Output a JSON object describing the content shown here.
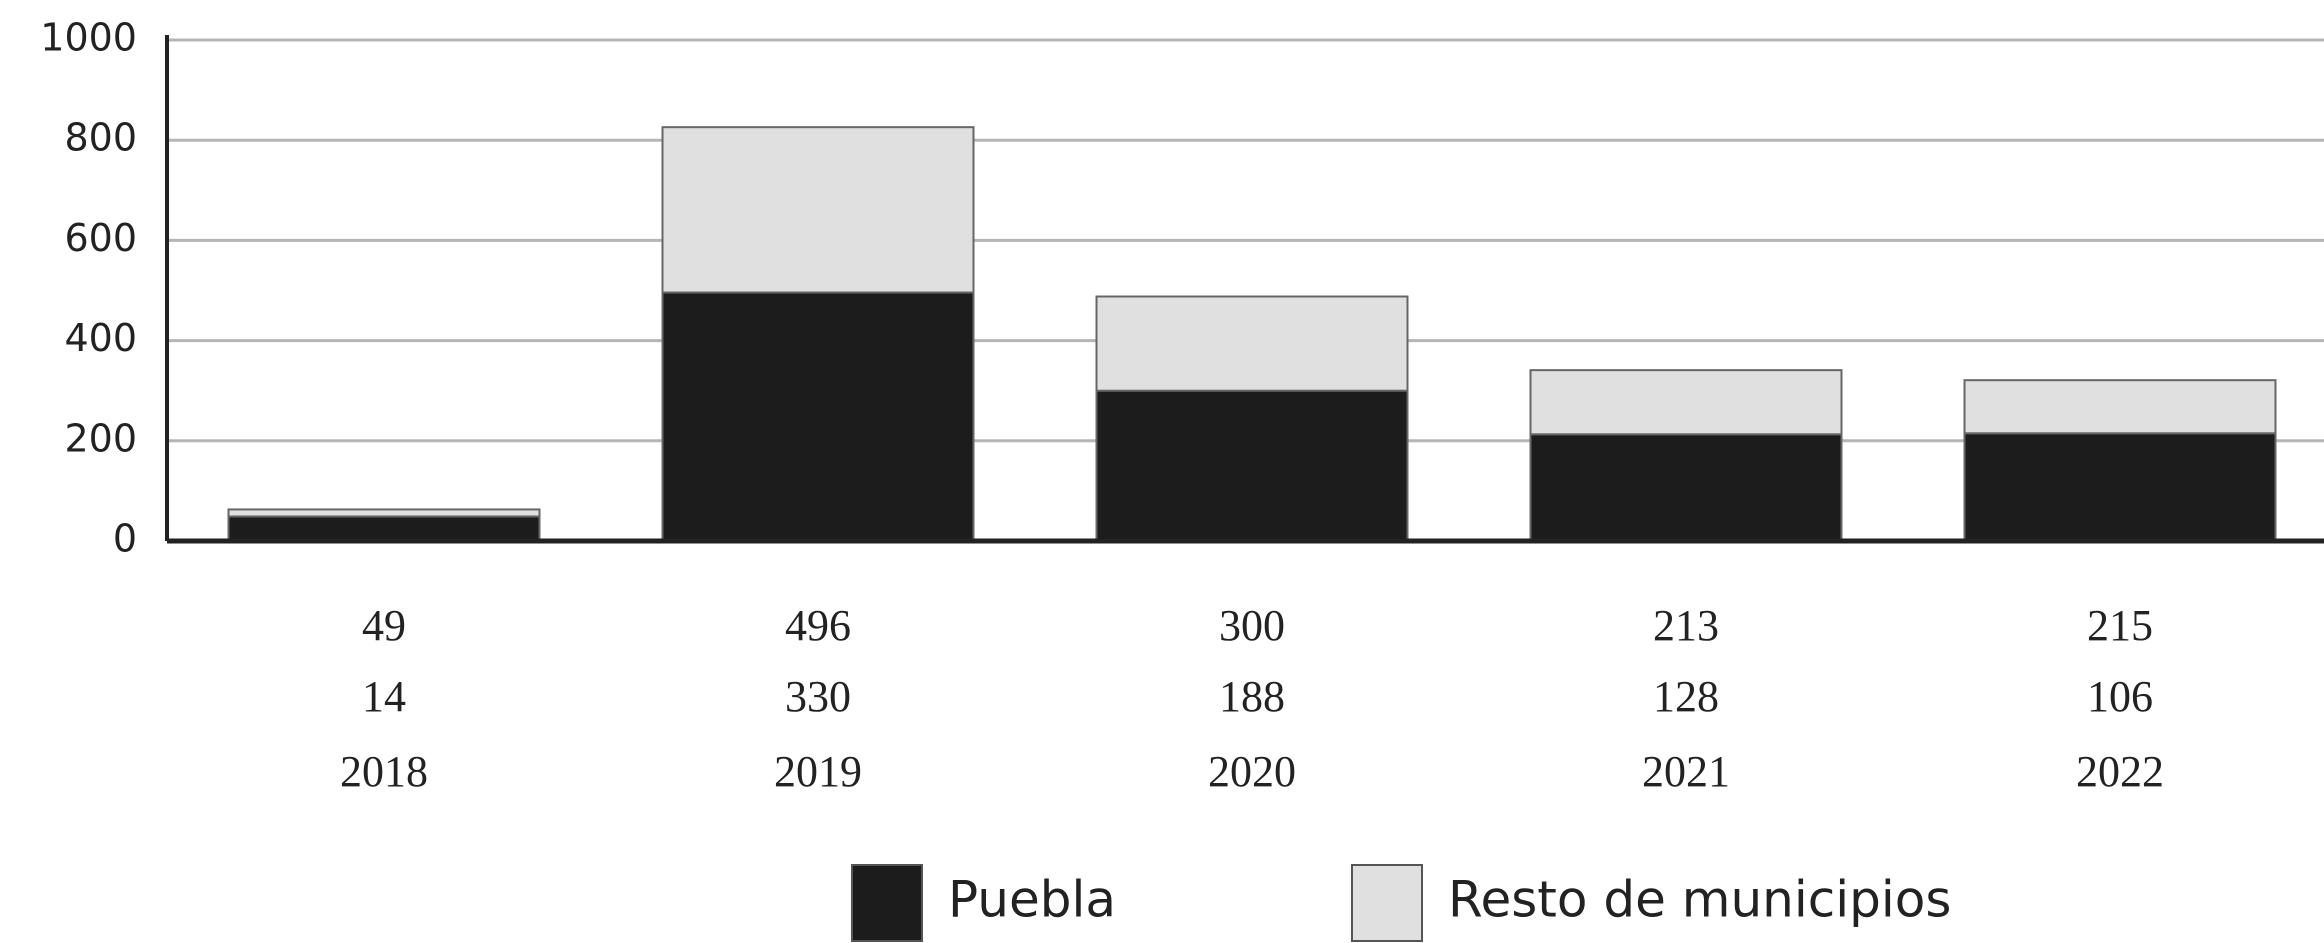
{
  "chart_data": {
    "type": "stacked_bar",
    "categories": [
      "2018",
      "2019",
      "2020",
      "2021",
      "2022"
    ],
    "series": [
      {
        "name": "Puebla",
        "color": "#1c1c1c",
        "values": [
          49,
          496,
          300,
          213,
          215
        ]
      },
      {
        "name": "Resto de municipios",
        "color": "#e0e0e0",
        "values": [
          14,
          330,
          188,
          128,
          106
        ]
      }
    ],
    "ylim": [
      0,
      1000
    ],
    "yticks": [
      0,
      200,
      400,
      600,
      800,
      1000
    ],
    "grid": true
  }
}
